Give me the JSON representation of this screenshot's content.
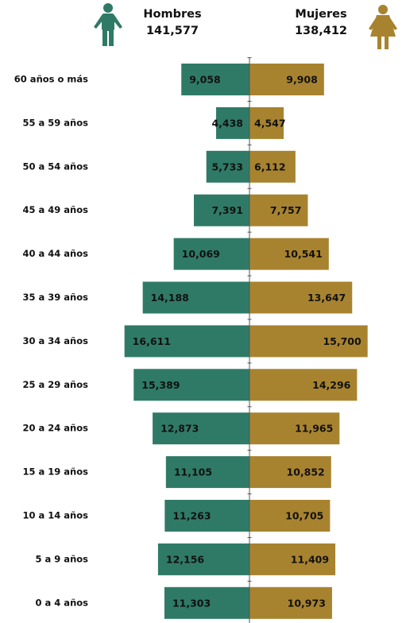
{
  "chart_data": {
    "type": "pyramid",
    "categories": [
      "60 años o más",
      "55 a 59 años",
      "50 a 54 años",
      "45 a 49 años",
      "40 a 44 años",
      "35 a 39 años",
      "30 a 34 años",
      "25 a 29 años",
      "20 a 24 años",
      "15 a 19 años",
      "10 a 14 años",
      "5 a 9 años",
      "0 a 4 años"
    ],
    "xlim": [
      0,
      17000
    ],
    "series": [
      {
        "name": "Hombres",
        "color": "#2f7a66",
        "side": "left",
        "total": {
          "value": 141577,
          "label": "141,577"
        },
        "values": [
          9058,
          4438,
          5733,
          7391,
          10069,
          14188,
          16611,
          15389,
          12873,
          11105,
          11263,
          12156,
          11303
        ],
        "value_labels": [
          "9,058",
          "4,438",
          "5,733",
          "7,391",
          "10,069",
          "14,188",
          "16,611",
          "15,389",
          "12,873",
          "11,105",
          "11,263",
          "12,156",
          "11,303"
        ]
      },
      {
        "name": "Mujeres",
        "color": "#a8832f",
        "side": "right",
        "total": {
          "value": 138412,
          "label": "138,412"
        },
        "values": [
          9908,
          4547,
          6112,
          7757,
          10541,
          13647,
          15700,
          14296,
          11965,
          10852,
          10705,
          11409,
          10973
        ],
        "value_labels": [
          "9,908",
          "4,547",
          "6,112",
          "7,757",
          "10,541",
          "13,647",
          "15,700",
          "14,296",
          "11,965",
          "10,852",
          "10,705",
          "11,409",
          "10,973"
        ]
      }
    ]
  }
}
